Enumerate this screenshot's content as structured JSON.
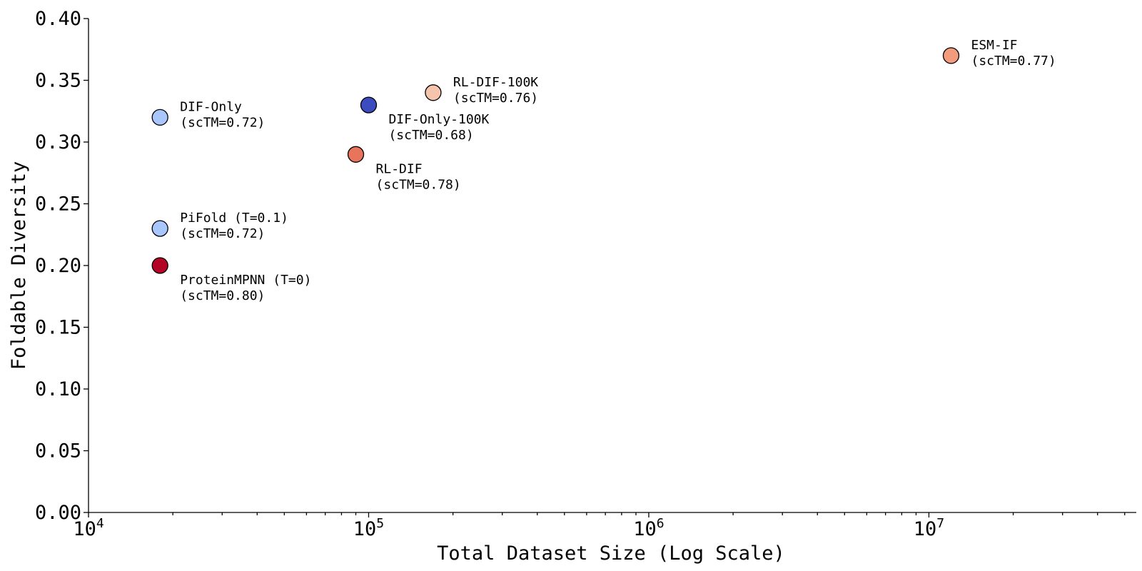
{
  "chart_data": {
    "type": "scatter",
    "xlabel": "Total Dataset Size (Log Scale)",
    "ylabel": "Foldable Diversity",
    "x_scale": "log",
    "xlim": [
      10000,
      55000000
    ],
    "ylim": [
      0,
      0.4
    ],
    "x_ticks": [
      {
        "value": 10000,
        "label": "10",
        "exp": "4"
      },
      {
        "value": 100000,
        "label": "10",
        "exp": "5"
      },
      {
        "value": 1000000,
        "label": "10",
        "exp": "6"
      },
      {
        "value": 10000000,
        "label": "10",
        "exp": "7"
      }
    ],
    "y_ticks": [
      {
        "value": 0.0,
        "label": "0.00"
      },
      {
        "value": 0.05,
        "label": "0.05"
      },
      {
        "value": 0.1,
        "label": "0.10"
      },
      {
        "value": 0.15,
        "label": "0.15"
      },
      {
        "value": 0.2,
        "label": "0.20"
      },
      {
        "value": 0.25,
        "label": "0.25"
      },
      {
        "value": 0.3,
        "label": "0.30"
      },
      {
        "value": 0.35,
        "label": "0.35"
      },
      {
        "value": 0.4,
        "label": "0.40"
      }
    ],
    "grid": false,
    "points": [
      {
        "x": 18000,
        "y": 0.32,
        "color": "#aac7fd",
        "line1": "DIF-Only",
        "line2": "(scTM=0.72)",
        "label_pos": "right-above"
      },
      {
        "x": 18000,
        "y": 0.23,
        "color": "#aac7fd",
        "line1": "PiFold (T=0.1)",
        "line2": "(scTM=0.72)",
        "label_pos": "right-above"
      },
      {
        "x": 18000,
        "y": 0.2,
        "color": "#b40426",
        "line1": "ProteinMPNN (T=0)",
        "line2": "(scTM=0.80)",
        "label_pos": "right-below"
      },
      {
        "x": 100000,
        "y": 0.33,
        "color": "#3b4cc0",
        "line1": "DIF-Only-100K",
        "line2": "(scTM=0.68)",
        "label_pos": "right-below"
      },
      {
        "x": 90000,
        "y": 0.29,
        "color": "#e7745b",
        "line1": "RL-DIF",
        "line2": "(scTM=0.78)",
        "label_pos": "right-below"
      },
      {
        "x": 170000,
        "y": 0.34,
        "color": "#f5c4ac",
        "line1": "RL-DIF-100K",
        "line2": "(scTM=0.76)",
        "label_pos": "right-above"
      },
      {
        "x": 12000000,
        "y": 0.37,
        "color": "#f39b7d",
        "line1": "ESM-IF",
        "line2": "(scTM=0.77)",
        "label_pos": "right-above"
      }
    ]
  }
}
